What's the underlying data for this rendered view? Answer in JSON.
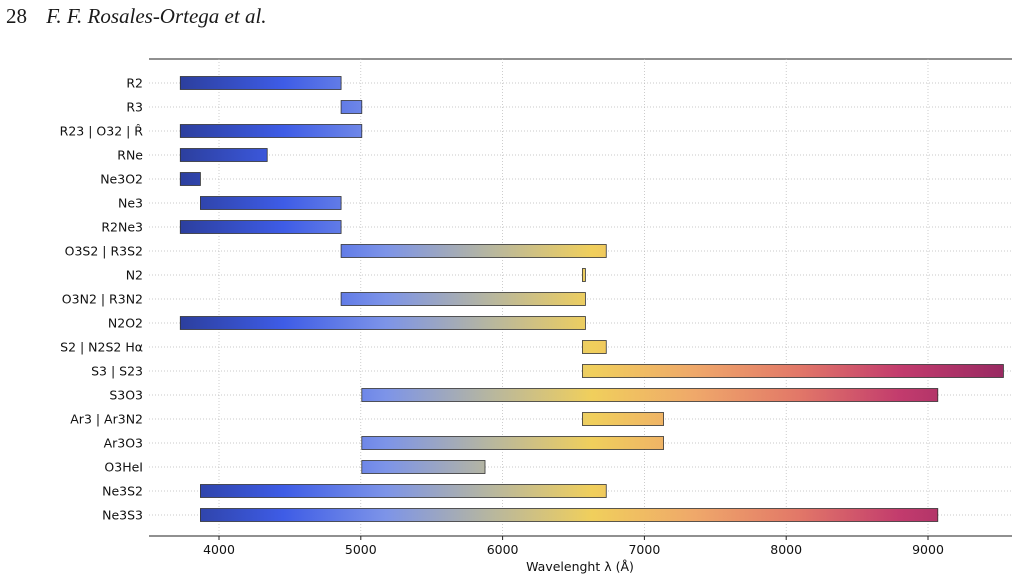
{
  "header": {
    "page_number": "28",
    "authors": "F. F. Rosales-Ortega et al."
  },
  "colors": {
    "gradient_stops": [
      "#2c3f9e",
      "#3e5ce6",
      "#7d94e8",
      "#b6b6a0",
      "#f0cf5c",
      "#efa86a",
      "#e27868",
      "#c23b6d",
      "#992a62"
    ],
    "bar_stroke": "#333333",
    "grid": "#b8b8b8"
  },
  "chart_data": {
    "type": "bar",
    "orientation": "horizontal-range",
    "categories": [
      "R2",
      "R3",
      "R23 | O32 | R̂",
      "RNe",
      "Ne3O2",
      "Ne3",
      "R2Ne3",
      "O3S2 | R3S2",
      "N2",
      "O3N2 | R3N2",
      "N2O2",
      "S2 | N2S2 Hα",
      "S3 | S23",
      "S3O3",
      "Ar3 | Ar3N2",
      "Ar3O3",
      "O3HeI",
      "Ne3S2",
      "Ne3S3"
    ],
    "ranges": [
      [
        3727,
        4861
      ],
      [
        4861,
        5007
      ],
      [
        3727,
        5007
      ],
      [
        3727,
        4340
      ],
      [
        3727,
        3869
      ],
      [
        3869,
        4861
      ],
      [
        3727,
        4861
      ],
      [
        4861,
        6731
      ],
      [
        6563,
        6584
      ],
      [
        4861,
        6584
      ],
      [
        3727,
        6584
      ],
      [
        6563,
        6731
      ],
      [
        6563,
        9532
      ],
      [
        5007,
        9069
      ],
      [
        6563,
        7135
      ],
      [
        5007,
        7135
      ],
      [
        5007,
        5876
      ],
      [
        3869,
        6731
      ],
      [
        3869,
        9069
      ]
    ],
    "xlabel": "Wavelenght λ (Å)",
    "xlim": [
      3500,
      9600
    ],
    "xticks": [
      4000,
      5000,
      6000,
      7000,
      8000,
      9000
    ],
    "grid": true
  }
}
